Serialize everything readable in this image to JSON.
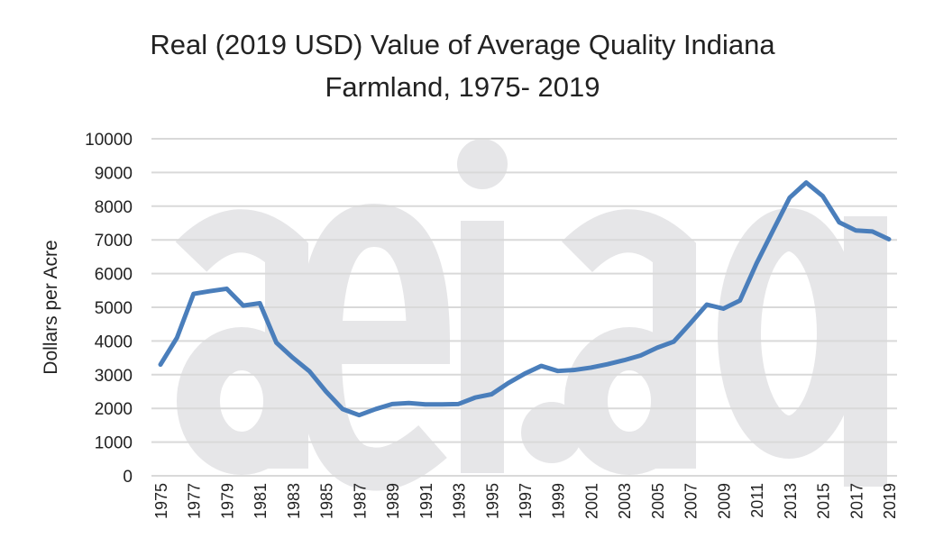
{
  "chart_data": {
    "type": "line",
    "title": "Real (2019 USD) Value of Average Quality Indiana Farmland, 1975- 2019",
    "title_lines": [
      "Real (2019 USD) Value of Average Quality Indiana",
      "Farmland, 1975- 2019"
    ],
    "xlabel": "",
    "ylabel": "Dollars per Acre",
    "ylim": [
      0,
      10000
    ],
    "yticks": [
      0,
      1000,
      2000,
      3000,
      4000,
      5000,
      6000,
      7000,
      8000,
      9000,
      10000
    ],
    "xtick_labels": [
      "1975",
      "1977",
      "1979",
      "1981",
      "1983",
      "1985",
      "1987",
      "1989",
      "1991",
      "1993",
      "1995",
      "1997",
      "1999",
      "2001",
      "2003",
      "2005",
      "2007",
      "2009",
      "2011",
      "2013",
      "2015",
      "2017",
      "2019"
    ],
    "grid": true,
    "line_color": "#4a7ebb",
    "watermark": "aei.ag",
    "x": [
      1975,
      1976,
      1977,
      1978,
      1979,
      1980,
      1981,
      1982,
      1983,
      1984,
      1985,
      1986,
      1987,
      1988,
      1989,
      1990,
      1991,
      1992,
      1993,
      1994,
      1995,
      1996,
      1997,
      1998,
      1999,
      2000,
      2001,
      2002,
      2003,
      2004,
      2005,
      2006,
      2007,
      2008,
      2009,
      2010,
      2011,
      2012,
      2013,
      2014,
      2015,
      2016,
      2017,
      2018,
      2019
    ],
    "values": [
      3300,
      4100,
      5400,
      5480,
      5550,
      5050,
      5120,
      3950,
      3500,
      3100,
      2500,
      1980,
      1800,
      1980,
      2130,
      2160,
      2120,
      2120,
      2130,
      2320,
      2420,
      2750,
      3030,
      3260,
      3110,
      3140,
      3210,
      3310,
      3430,
      3570,
      3800,
      3980,
      4520,
      5080,
      4960,
      5200,
      6300,
      7280,
      8250,
      8700,
      8300,
      7520,
      7280,
      7250,
      7020
    ]
  }
}
